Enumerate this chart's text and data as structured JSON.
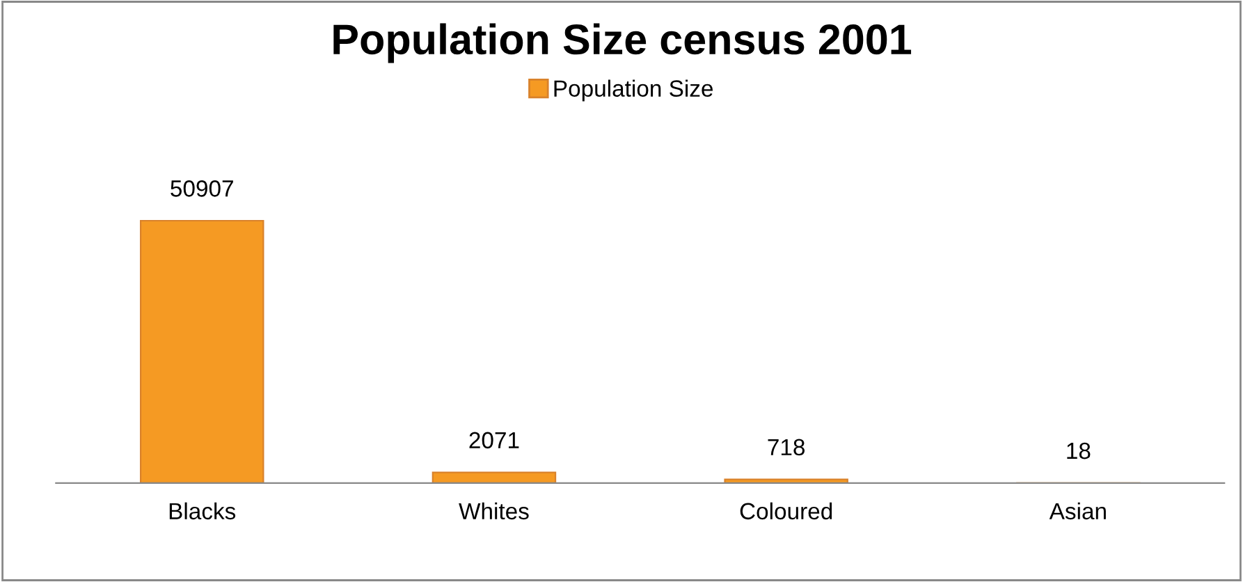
{
  "chart_data": {
    "type": "bar",
    "title": "Population Size census 2001",
    "categories": [
      "Blacks",
      "Whites",
      "Coloured",
      "Asian"
    ],
    "series": [
      {
        "name": "Population Size",
        "color": "#f59a23",
        "values": [
          50907,
          2071,
          718,
          18
        ]
      }
    ],
    "data_labels": true,
    "legend": "top",
    "grid": false
  }
}
